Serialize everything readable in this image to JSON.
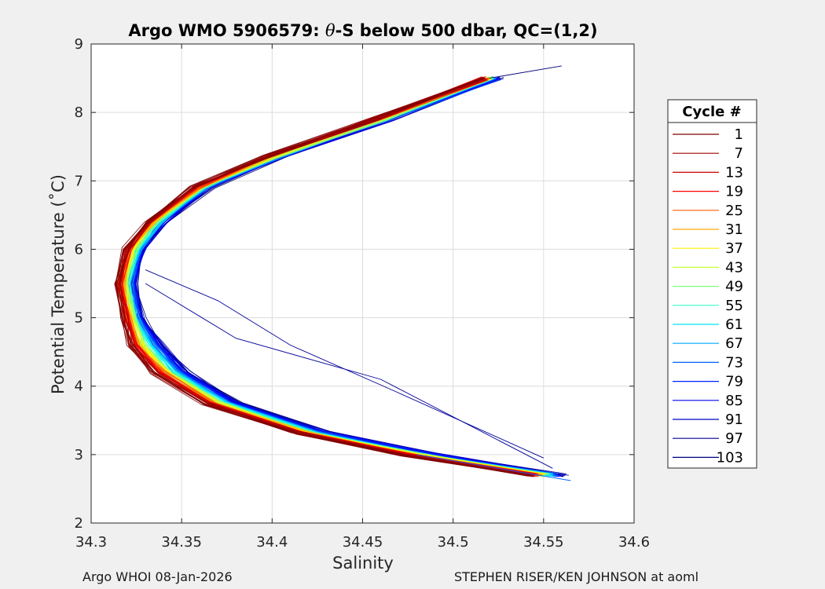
{
  "chart_data": {
    "type": "line",
    "title_parts": [
      "Argo WMO 5906579: ",
      "θ",
      "-S below 500 dbar,  QC=(1,2)"
    ],
    "xlabel": "Salinity",
    "ylabel": "Potential Temperature (˚C)",
    "xlim": [
      34.3,
      34.6
    ],
    "ylim": [
      2,
      9
    ],
    "xticks": [
      "34.3",
      "34.35",
      "34.4",
      "34.45",
      "34.5",
      "34.55",
      "34.6"
    ],
    "yticks": [
      "2",
      "3",
      "4",
      "5",
      "6",
      "7",
      "8",
      "9"
    ],
    "grid": true,
    "legend": {
      "title": "Cycle #",
      "placement": "outside-right",
      "entries": [
        "1",
        "7",
        "13",
        "19",
        "25",
        "31",
        "37",
        "43",
        "49",
        "55",
        "61",
        "67",
        "73",
        "79",
        "85",
        "91",
        "97",
        "103"
      ],
      "colors": [
        "#7f0000",
        "#a30000",
        "#d10000",
        "#ff0000",
        "#ff5a00",
        "#ffaa00",
        "#fff000",
        "#c8ff37",
        "#7fff7f",
        "#37ffc8",
        "#00e4ff",
        "#00aaff",
        "#0064ff",
        "#0020ff",
        "#0000ee",
        "#0000c4",
        "#00009a",
        "#000080"
      ]
    },
    "profile_shape": {
      "upper_limb": [
        [
          34.52,
          8.5
        ],
        [
          34.46,
          7.9
        ],
        [
          34.4,
          7.35
        ],
        [
          34.36,
          6.9
        ],
        [
          34.335,
          6.4
        ],
        [
          34.323,
          6.0
        ],
        [
          34.318,
          5.5
        ]
      ],
      "lower_limb": [
        [
          34.318,
          5.5
        ],
        [
          34.322,
          5.0
        ],
        [
          34.328,
          4.6
        ],
        [
          34.342,
          4.2
        ],
        [
          34.37,
          3.75
        ],
        [
          34.42,
          3.32
        ],
        [
          34.48,
          3.0
        ],
        [
          34.55,
          2.7
        ]
      ],
      "salinity_spread_by_cycle": [
        -0.008,
        0.012
      ],
      "late_cycle_outliers": [
        [
          [
            34.33,
            5.7
          ],
          [
            34.37,
            5.25
          ],
          [
            34.41,
            4.6
          ],
          [
            34.47,
            3.9
          ],
          [
            34.55,
            2.95
          ]
        ],
        [
          [
            34.33,
            5.5
          ],
          [
            34.38,
            4.7
          ],
          [
            34.46,
            4.1
          ],
          [
            34.555,
            2.8
          ]
        ]
      ],
      "extreme_max": [
        34.56,
        8.68
      ],
      "extreme_min": [
        34.565,
        2.62
      ]
    }
  },
  "footer": {
    "left": "Argo WHOI 08-Jan-2026",
    "right": "STEPHEN RISER/KEN JOHNSON at aoml"
  }
}
